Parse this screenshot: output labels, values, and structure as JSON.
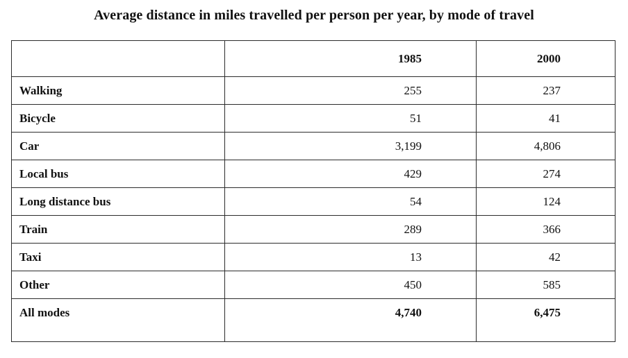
{
  "chart_data": {
    "type": "table",
    "title": "Average distance in miles travelled per person per year, by mode of travel",
    "columns": [
      "",
      "1985",
      "2000"
    ],
    "rows": [
      {
        "mode": "Walking",
        "y1985": "255",
        "y2000": "237"
      },
      {
        "mode": "Bicycle",
        "y1985": "51",
        "y2000": "41"
      },
      {
        "mode": "Car",
        "y1985": "3,199",
        "y2000": "4,806"
      },
      {
        "mode": "Local bus",
        "y1985": "429",
        "y2000": "274"
      },
      {
        "mode": "Long distance bus",
        "y1985": "54",
        "y2000": "124"
      },
      {
        "mode": "Train",
        "y1985": "289",
        "y2000": "366"
      },
      {
        "mode": "Taxi",
        "y1985": "13",
        "y2000": "42"
      },
      {
        "mode": "Other",
        "y1985": "450",
        "y2000": "585"
      }
    ],
    "total": {
      "mode": "All modes",
      "y1985": "4,740",
      "y2000": "6,475"
    }
  }
}
